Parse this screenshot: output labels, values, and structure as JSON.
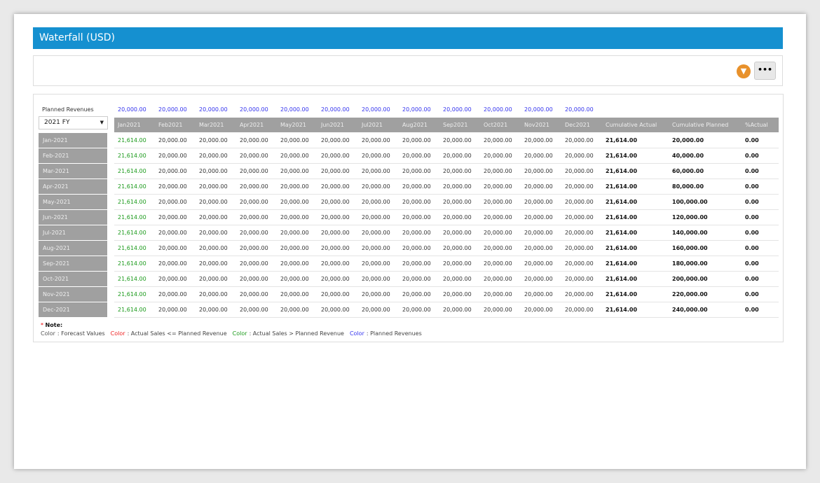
{
  "title": "Waterfall (USD)",
  "toolbar": {
    "filter_icon": "filter-icon",
    "more_label": "•••"
  },
  "accent_colors": {
    "header": "#1590d0",
    "forecast": "#555555",
    "below_plan": "#ee2222",
    "above_plan": "#1a9a1a",
    "planned": "#3333ee"
  },
  "planned_revenues_label": "Planned Revenues",
  "year_select": "2021 FY",
  "planned_row": [
    "20,000.00",
    "20,000.00",
    "20,000.00",
    "20,000.00",
    "20,000.00",
    "20,000.00",
    "20,000.00",
    "20,000.00",
    "20,000.00",
    "20,000.00",
    "20,000.00",
    "20,000.00"
  ],
  "columns": [
    "Jan2021",
    "Feb2021",
    "Mar2021",
    "Apr2021",
    "May2021",
    "Jun2021",
    "Jul2021",
    "Aug2021",
    "Sep2021",
    "Oct2021",
    "Nov2021",
    "Dec2021",
    "Cumulative Actual",
    "Cumulative Planned",
    "%Actual"
  ],
  "rows": [
    {
      "label": "Jan-2021",
      "cells": [
        "21,614.00",
        "20,000.00",
        "20,000.00",
        "20,000.00",
        "20,000.00",
        "20,000.00",
        "20,000.00",
        "20,000.00",
        "20,000.00",
        "20,000.00",
        "20,000.00",
        "20,000.00",
        "21,614.00",
        "20,000.00",
        "0.00"
      ]
    },
    {
      "label": "Feb-2021",
      "cells": [
        "21,614.00",
        "20,000.00",
        "20,000.00",
        "20,000.00",
        "20,000.00",
        "20,000.00",
        "20,000.00",
        "20,000.00",
        "20,000.00",
        "20,000.00",
        "20,000.00",
        "20,000.00",
        "21,614.00",
        "40,000.00",
        "0.00"
      ]
    },
    {
      "label": "Mar-2021",
      "cells": [
        "21,614.00",
        "20,000.00",
        "20,000.00",
        "20,000.00",
        "20,000.00",
        "20,000.00",
        "20,000.00",
        "20,000.00",
        "20,000.00",
        "20,000.00",
        "20,000.00",
        "20,000.00",
        "21,614.00",
        "60,000.00",
        "0.00"
      ]
    },
    {
      "label": "Apr-2021",
      "cells": [
        "21,614.00",
        "20,000.00",
        "20,000.00",
        "20,000.00",
        "20,000.00",
        "20,000.00",
        "20,000.00",
        "20,000.00",
        "20,000.00",
        "20,000.00",
        "20,000.00",
        "20,000.00",
        "21,614.00",
        "80,000.00",
        "0.00"
      ]
    },
    {
      "label": "May-2021",
      "cells": [
        "21,614.00",
        "20,000.00",
        "20,000.00",
        "20,000.00",
        "20,000.00",
        "20,000.00",
        "20,000.00",
        "20,000.00",
        "20,000.00",
        "20,000.00",
        "20,000.00",
        "20,000.00",
        "21,614.00",
        "100,000.00",
        "0.00"
      ]
    },
    {
      "label": "Jun-2021",
      "cells": [
        "21,614.00",
        "20,000.00",
        "20,000.00",
        "20,000.00",
        "20,000.00",
        "20,000.00",
        "20,000.00",
        "20,000.00",
        "20,000.00",
        "20,000.00",
        "20,000.00",
        "20,000.00",
        "21,614.00",
        "120,000.00",
        "0.00"
      ]
    },
    {
      "label": "Jul-2021",
      "cells": [
        "21,614.00",
        "20,000.00",
        "20,000.00",
        "20,000.00",
        "20,000.00",
        "20,000.00",
        "20,000.00",
        "20,000.00",
        "20,000.00",
        "20,000.00",
        "20,000.00",
        "20,000.00",
        "21,614.00",
        "140,000.00",
        "0.00"
      ]
    },
    {
      "label": "Aug-2021",
      "cells": [
        "21,614.00",
        "20,000.00",
        "20,000.00",
        "20,000.00",
        "20,000.00",
        "20,000.00",
        "20,000.00",
        "20,000.00",
        "20,000.00",
        "20,000.00",
        "20,000.00",
        "20,000.00",
        "21,614.00",
        "160,000.00",
        "0.00"
      ]
    },
    {
      "label": "Sep-2021",
      "cells": [
        "21,614.00",
        "20,000.00",
        "20,000.00",
        "20,000.00",
        "20,000.00",
        "20,000.00",
        "20,000.00",
        "20,000.00",
        "20,000.00",
        "20,000.00",
        "20,000.00",
        "20,000.00",
        "21,614.00",
        "180,000.00",
        "0.00"
      ]
    },
    {
      "label": "Oct-2021",
      "cells": [
        "21,614.00",
        "20,000.00",
        "20,000.00",
        "20,000.00",
        "20,000.00",
        "20,000.00",
        "20,000.00",
        "20,000.00",
        "20,000.00",
        "20,000.00",
        "20,000.00",
        "20,000.00",
        "21,614.00",
        "200,000.00",
        "0.00"
      ]
    },
    {
      "label": "Nov-2021",
      "cells": [
        "21,614.00",
        "20,000.00",
        "20,000.00",
        "20,000.00",
        "20,000.00",
        "20,000.00",
        "20,000.00",
        "20,000.00",
        "20,000.00",
        "20,000.00",
        "20,000.00",
        "20,000.00",
        "21,614.00",
        "220,000.00",
        "0.00"
      ]
    },
    {
      "label": "Dec-2021",
      "cells": [
        "21,614.00",
        "20,000.00",
        "20,000.00",
        "20,000.00",
        "20,000.00",
        "20,000.00",
        "20,000.00",
        "20,000.00",
        "20,000.00",
        "20,000.00",
        "20,000.00",
        "20,000.00",
        "21,614.00",
        "240,000.00",
        "0.00"
      ]
    }
  ],
  "note": {
    "title": "Note:",
    "star": "*",
    "legend": [
      {
        "word": "Color",
        "text": ": Forecast Values",
        "color": "#555555"
      },
      {
        "word": "Color",
        "text": ": Actual Sales <= Planned Revenue",
        "color": "#ee2222"
      },
      {
        "word": "Color",
        "text": ": Actual Sales > Planned Revenue",
        "color": "#1a9a1a"
      },
      {
        "word": "Color",
        "text": ": Planned Revenues",
        "color": "#3333ee"
      }
    ]
  }
}
